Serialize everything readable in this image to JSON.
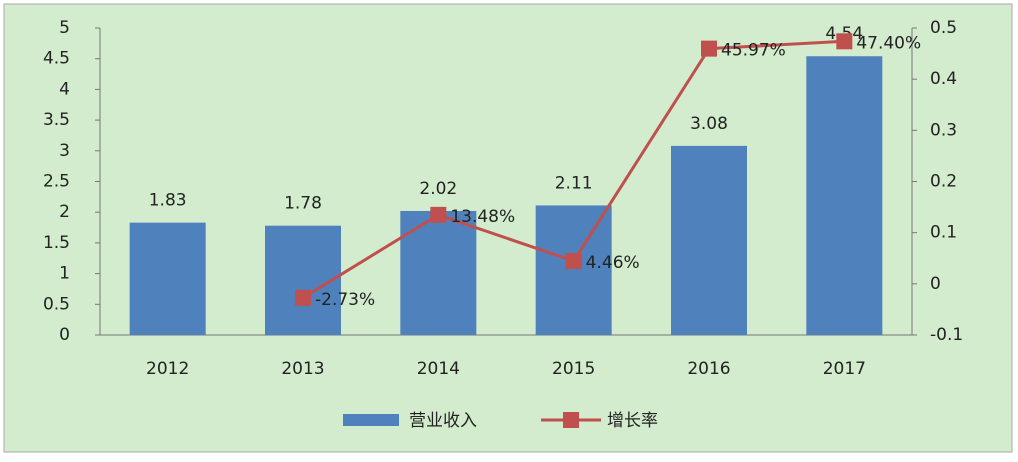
{
  "chart_data": {
    "type": "bar",
    "categories": [
      "2012",
      "2013",
      "2014",
      "2015",
      "2016",
      "2017"
    ],
    "series": [
      {
        "name": "营业收入",
        "type": "bar",
        "color": "#4f81bd",
        "values": [
          1.83,
          1.78,
          2.02,
          2.11,
          3.08,
          4.54
        ]
      },
      {
        "name": "增长率",
        "type": "line",
        "axis": "y2",
        "color": "#c0504d",
        "values": [
          null,
          -0.0273,
          0.1348,
          0.0446,
          0.4597,
          0.474
        ],
        "value_labels": [
          null,
          "-2.73%",
          "13.48%",
          "4.46%",
          "45.97%",
          "47.40%"
        ]
      }
    ],
    "ylim": [
      0,
      5
    ],
    "yticks": [
      0,
      0.5,
      1,
      1.5,
      2,
      2.5,
      3,
      3.5,
      4,
      4.5,
      5
    ],
    "y2lim": [
      -0.1,
      0.5
    ],
    "y2ticks": [
      -0.1,
      0,
      0.1,
      0.2,
      0.3,
      0.4,
      0.5
    ],
    "legend": "bottom",
    "grid": false
  }
}
